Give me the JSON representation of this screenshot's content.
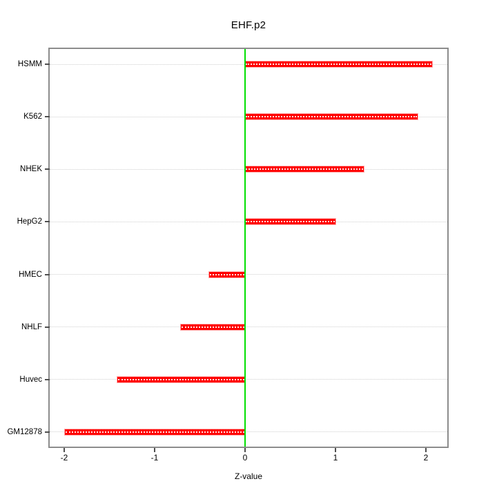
{
  "title": "EHF.p2",
  "chart_data": {
    "type": "bar",
    "orientation": "horizontal",
    "title": "EHF.p2",
    "xlabel": "Z-value",
    "ylabel": "",
    "categories": [
      "HSMM",
      "K562",
      "NHEK",
      "HepG2",
      "HMEC",
      "NHLF",
      "Huvec",
      "GM12878"
    ],
    "values": [
      2.07,
      1.91,
      1.31,
      1.0,
      -0.4,
      -0.71,
      -1.41,
      -1.99
    ],
    "x_ticks": [
      -2,
      -1,
      0,
      1,
      2
    ],
    "xlim": [
      -2.16,
      2.24
    ],
    "grid": "horizontal dotted lines, one per category",
    "legend": "none",
    "colors": {
      "bar_fill": "#ff0000",
      "bar_border": "#ffabab",
      "bar_inner_dots": "#ffffff",
      "zero_line": "#00e000",
      "gridline": "#cfcfcf",
      "plot_border": "#8c8c8c",
      "text": "#000000"
    }
  }
}
